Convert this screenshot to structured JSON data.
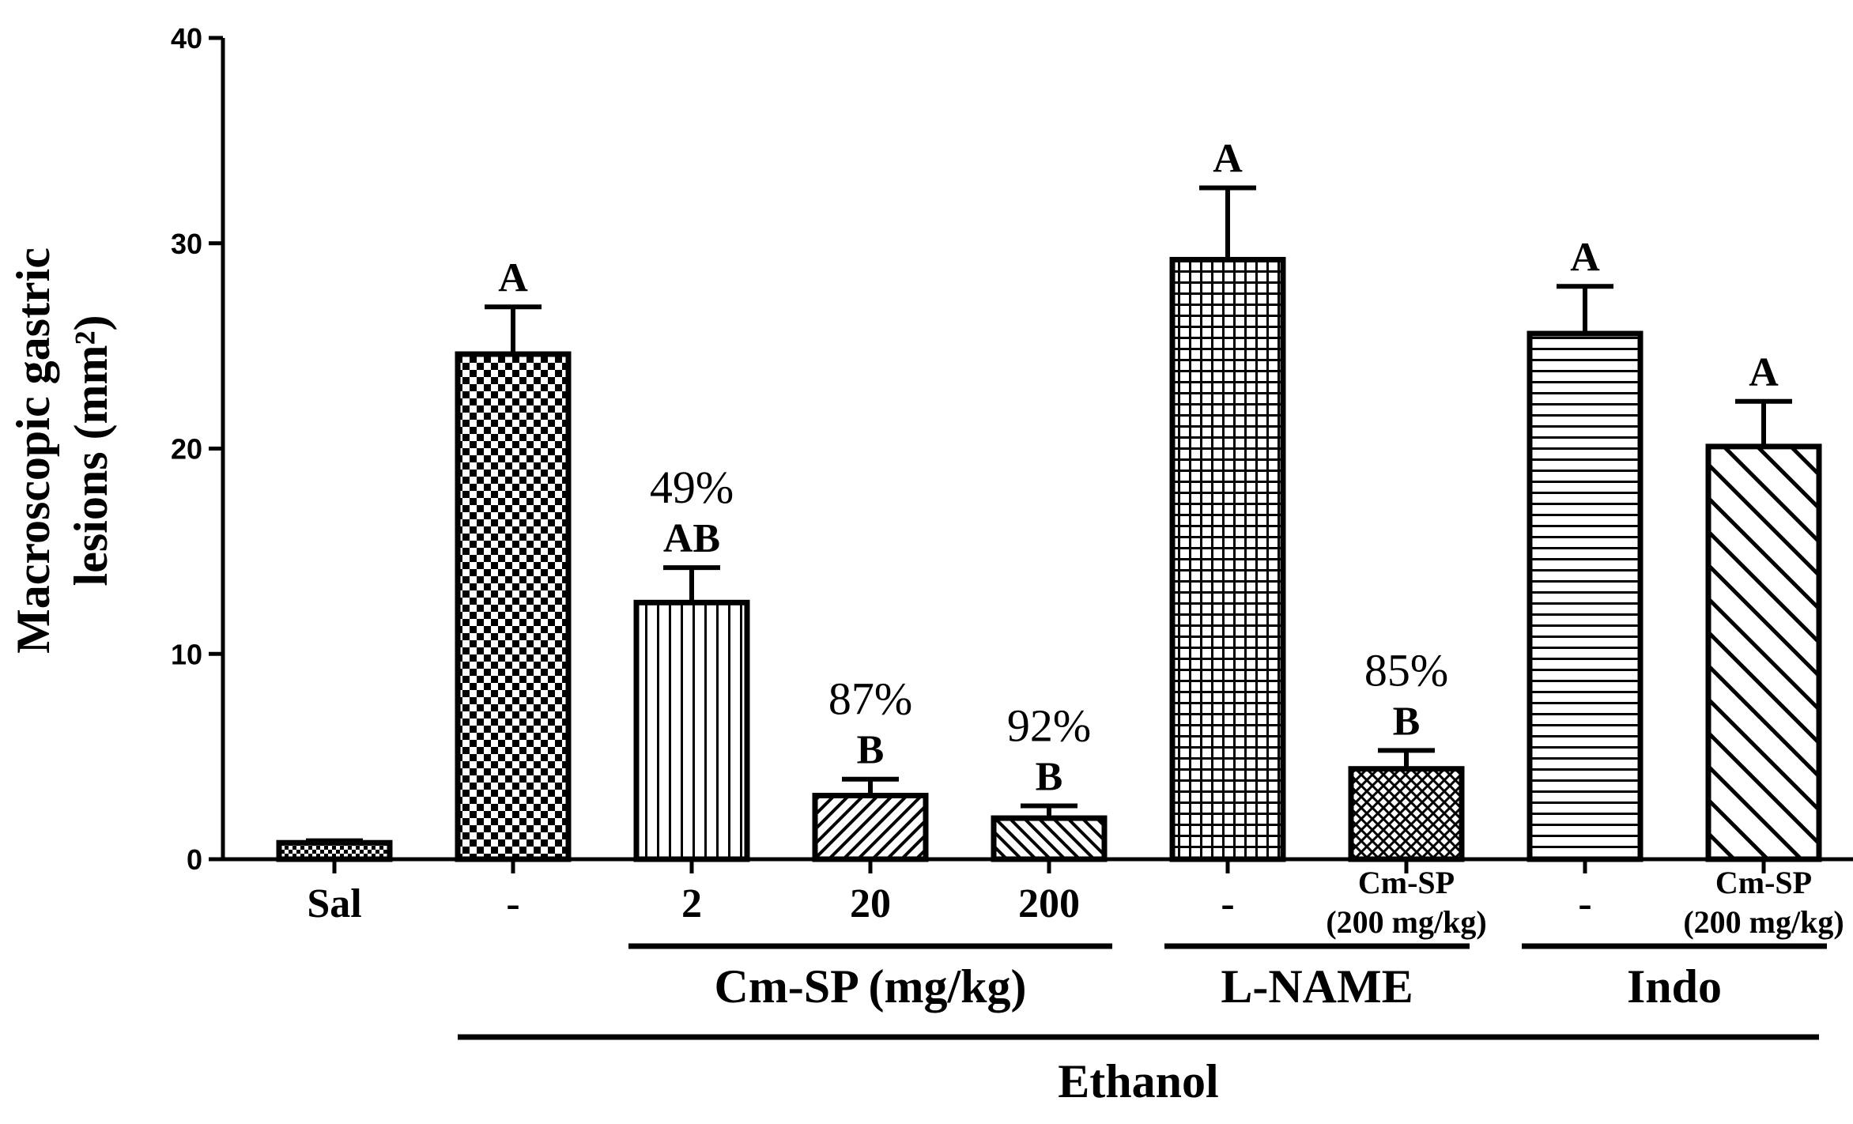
{
  "chart_data": {
    "type": "bar",
    "ylabel_lines": [
      "Macroscopic gastric",
      "lesions (mm²)"
    ],
    "ylim": [
      0,
      40
    ],
    "yticks": [
      0,
      10,
      20,
      30,
      40
    ],
    "ytick_labels": [
      "0",
      "10",
      "20",
      "30",
      "40"
    ],
    "bars": [
      {
        "label": "Sal",
        "label2": "",
        "value": 0.8,
        "error": 0.1,
        "sig": "",
        "pct": "",
        "pattern": "small-check"
      },
      {
        "label": "-",
        "label2": "",
        "value": 24.6,
        "error": 2.3,
        "sig": "A",
        "pct": "",
        "pattern": "checker"
      },
      {
        "label": "2",
        "label2": "",
        "value": 12.5,
        "error": 1.7,
        "sig": "AB",
        "pct": "49%",
        "pattern": "vlines"
      },
      {
        "label": "20",
        "label2": "",
        "value": 3.1,
        "error": 0.8,
        "sig": "B",
        "pct": "87%",
        "pattern": "diag-fwd"
      },
      {
        "label": "200",
        "label2": "",
        "value": 2.0,
        "error": 0.6,
        "sig": "B",
        "pct": "92%",
        "pattern": "diag-back"
      },
      {
        "label": "-",
        "label2": "",
        "value": 29.2,
        "error": 3.5,
        "sig": "A",
        "pct": "",
        "pattern": "grid"
      },
      {
        "label": "Cm-SP",
        "label2": "(200 mg/kg)",
        "value": 4.4,
        "error": 0.9,
        "sig": "B",
        "pct": "85%",
        "pattern": "crosshatch"
      },
      {
        "label": "-",
        "label2": "",
        "value": 25.6,
        "error": 2.3,
        "sig": "A",
        "pct": "",
        "pattern": "hlines"
      },
      {
        "label": "Cm-SP",
        "label2": "(200 mg/kg)",
        "value": 20.1,
        "error": 2.2,
        "sig": "A",
        "pct": "",
        "pattern": "diag-wide"
      }
    ],
    "groups": [
      {
        "label": "Cm-SP (mg/kg)",
        "from": 2,
        "to": 4,
        "level": 1
      },
      {
        "label": "L-NAME",
        "from": 5,
        "to": 6,
        "level": 1
      },
      {
        "label": "Indo",
        "from": 7,
        "to": 8,
        "level": 1
      },
      {
        "label": "Ethanol",
        "from": 1,
        "to": 8,
        "level": 2
      }
    ]
  }
}
